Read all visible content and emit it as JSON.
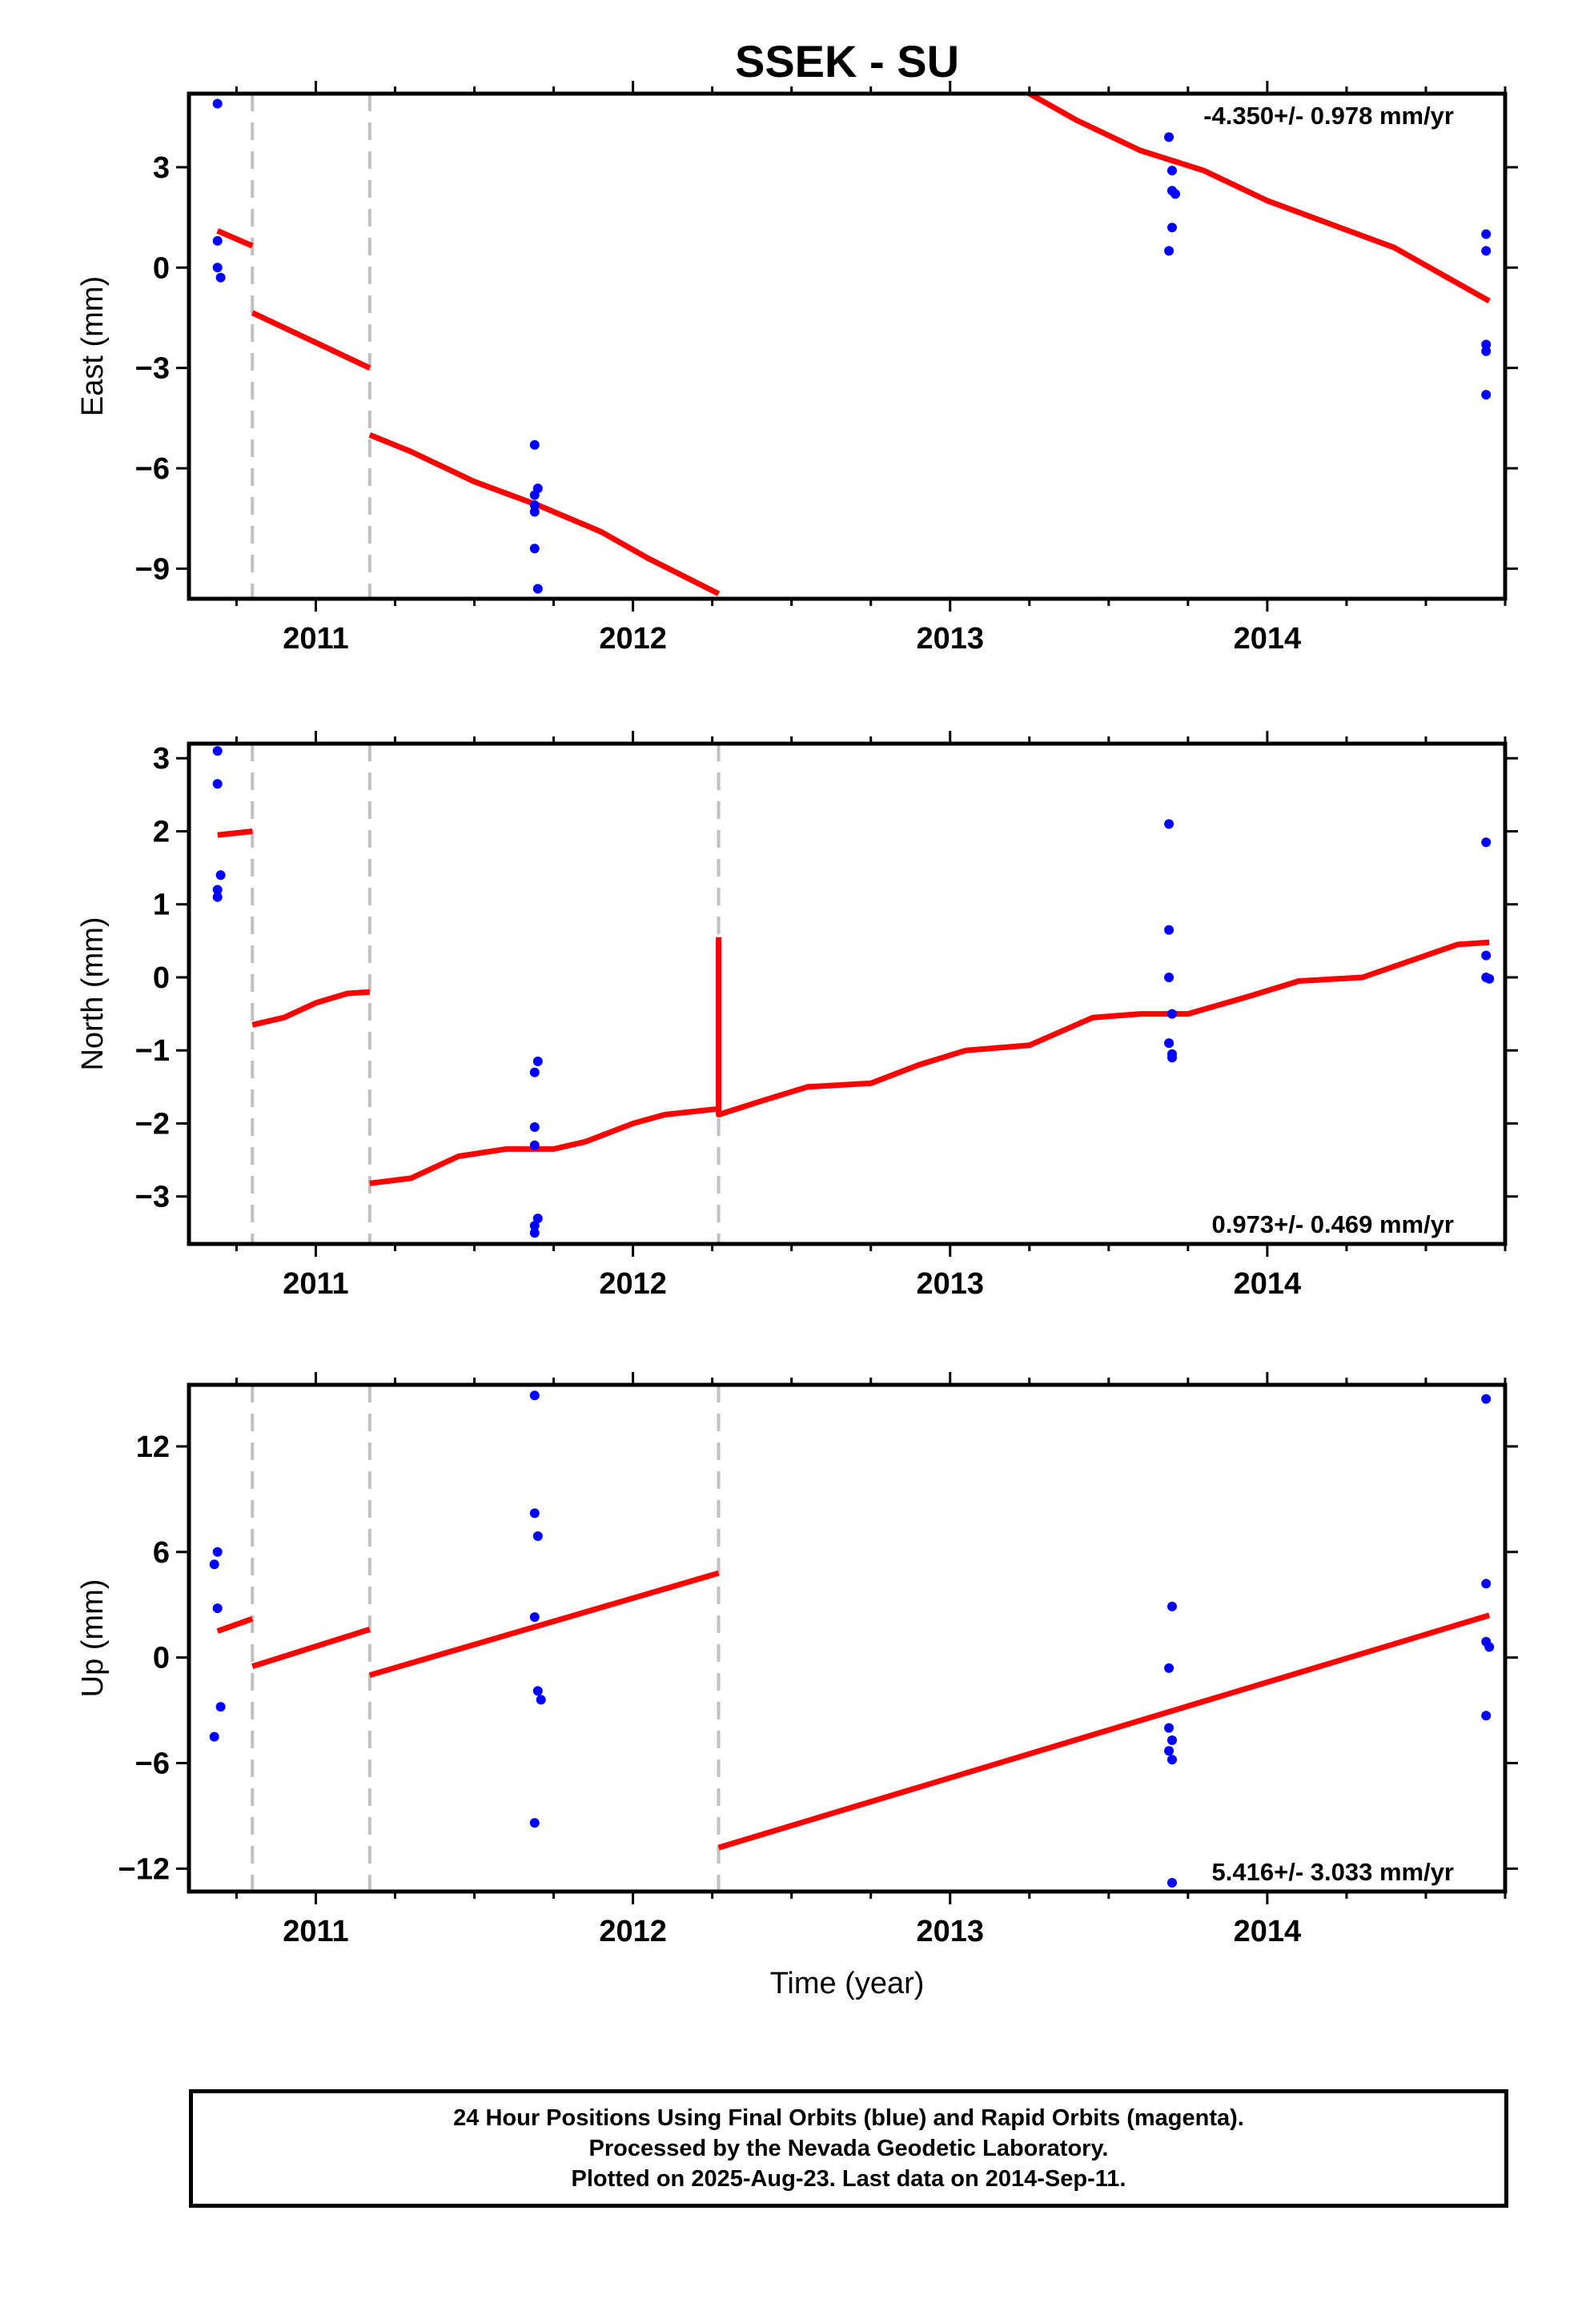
{
  "title": "SSEK - SU",
  "xlabel": "Time (year)",
  "x_ticks": [
    2011,
    2012,
    2013,
    2014
  ],
  "x_tick_labels": [
    "2011",
    "2012",
    "2013",
    "2014"
  ],
  "xlim": [
    2010.6,
    2014.75
  ],
  "event_lines": [
    2010.8,
    2011.17,
    2012.27
  ],
  "colors": {
    "model": "#ff0000",
    "data": "#0000ff",
    "event": "#c0c0c0",
    "axis": "#000000"
  },
  "footer": {
    "line1": "24 Hour Positions Using Final Orbits (blue) and Rapid Orbits (magenta).",
    "line2": "Processed by the Nevada Geodetic Laboratory.",
    "line3": "Plotted on 2025-Aug-23. Last data on 2014-Sep-11."
  },
  "chart_data": [
    {
      "type": "scatter",
      "ylabel": "East (mm)",
      "ylim": [
        -9.9,
        5.2
      ],
      "yticks": [
        -9,
        -6,
        -3,
        0,
        3
      ],
      "ytick_labels": [
        "−9",
        "−6",
        "−3",
        "0",
        "3"
      ],
      "rate_label": "-4.350+/- 0.978 mm/yr",
      "rate_position": "top-right",
      "event_lines": [
        2010.8,
        2011.17
      ],
      "points": [
        [
          2010.69,
          4.9
        ],
        [
          2010.69,
          0.8
        ],
        [
          2010.69,
          0.0
        ],
        [
          2010.7,
          -0.3
        ],
        [
          2011.69,
          -5.3
        ],
        [
          2011.7,
          -6.6
        ],
        [
          2011.69,
          -6.8
        ],
        [
          2011.69,
          -7.1
        ],
        [
          2011.69,
          -7.3
        ],
        [
          2011.69,
          -8.4
        ],
        [
          2011.7,
          -9.6
        ],
        [
          2013.69,
          3.9
        ],
        [
          2013.7,
          2.9
        ],
        [
          2013.7,
          2.3
        ],
        [
          2013.71,
          2.2
        ],
        [
          2013.7,
          1.2
        ],
        [
          2013.69,
          0.5
        ],
        [
          2014.69,
          1.0
        ],
        [
          2014.69,
          0.5
        ],
        [
          2014.69,
          -2.3
        ],
        [
          2014.69,
          -2.5
        ],
        [
          2014.69,
          -3.8
        ]
      ],
      "model_segments": [
        [
          [
            2010.69,
            1.1
          ],
          [
            2010.8,
            0.65
          ]
        ],
        [
          [
            2010.8,
            -1.35
          ],
          [
            2011.17,
            -3.0
          ]
        ],
        [
          [
            2011.17,
            -5.0
          ],
          [
            2011.3,
            -5.5
          ],
          [
            2011.5,
            -6.4
          ],
          [
            2011.7,
            -7.1
          ],
          [
            2011.9,
            -7.9
          ],
          [
            2012.05,
            -8.7
          ],
          [
            2012.27,
            -9.75
          ]
        ],
        [
          [
            2012.27,
            5.2
          ],
          [
            2012.27,
            20.0
          ],
          [
            2013.0,
            8.0
          ],
          [
            2013.25,
            5.2
          ],
          [
            2013.4,
            4.4
          ],
          [
            2013.6,
            3.5
          ],
          [
            2013.8,
            2.9
          ],
          [
            2014.0,
            2.0
          ],
          [
            2014.2,
            1.3
          ],
          [
            2014.4,
            0.6
          ],
          [
            2014.7,
            -1.0
          ]
        ]
      ]
    },
    {
      "type": "scatter",
      "ylabel": "North (mm)",
      "ylim": [
        -3.65,
        3.2
      ],
      "yticks": [
        -3,
        -2,
        -1,
        0,
        1,
        2,
        3
      ],
      "ytick_labels": [
        "−3",
        "−2",
        "−1",
        "0",
        "1",
        "2",
        "3"
      ],
      "rate_label": "0.973+/- 0.469 mm/yr",
      "rate_position": "bottom-right",
      "event_lines": [
        2010.8,
        2011.17,
        2012.27
      ],
      "points": [
        [
          2010.69,
          3.1
        ],
        [
          2010.69,
          2.65
        ],
        [
          2010.7,
          1.4
        ],
        [
          2010.69,
          1.2
        ],
        [
          2010.69,
          1.1
        ],
        [
          2011.7,
          -1.15
        ],
        [
          2011.69,
          -1.3
        ],
        [
          2011.69,
          -2.05
        ],
        [
          2011.69,
          -2.3
        ],
        [
          2011.7,
          -3.3
        ],
        [
          2011.69,
          -3.4
        ],
        [
          2011.69,
          -3.5
        ],
        [
          2013.69,
          2.1
        ],
        [
          2013.69,
          0.65
        ],
        [
          2013.69,
          0.0
        ],
        [
          2013.7,
          -0.5
        ],
        [
          2013.69,
          -0.9
        ],
        [
          2013.7,
          -1.05
        ],
        [
          2013.7,
          -1.1
        ],
        [
          2014.69,
          1.85
        ],
        [
          2014.69,
          0.3
        ],
        [
          2014.69,
          0.0
        ],
        [
          2014.7,
          -0.02
        ]
      ],
      "model_segments": [
        [
          [
            2010.69,
            1.95
          ],
          [
            2010.8,
            2.0
          ]
        ],
        [
          [
            2010.8,
            -0.65
          ],
          [
            2010.9,
            -0.55
          ],
          [
            2011.0,
            -0.35
          ],
          [
            2011.1,
            -0.22
          ],
          [
            2011.17,
            -0.2
          ]
        ],
        [
          [
            2011.17,
            -2.82
          ],
          [
            2011.3,
            -2.75
          ],
          [
            2011.45,
            -2.45
          ],
          [
            2011.6,
            -2.35
          ],
          [
            2011.75,
            -2.35
          ],
          [
            2011.85,
            -2.25
          ],
          [
            2012.0,
            -2.0
          ],
          [
            2012.1,
            -1.88
          ],
          [
            2012.27,
            -1.8
          ]
        ],
        [
          [
            2012.27,
            0.55
          ],
          [
            2012.27,
            -1.88
          ],
          [
            2012.4,
            -1.7
          ],
          [
            2012.55,
            -1.5
          ],
          [
            2012.75,
            -1.45
          ],
          [
            2012.9,
            -1.2
          ],
          [
            2013.05,
            -1.0
          ],
          [
            2013.25,
            -0.93
          ],
          [
            2013.45,
            -0.55
          ],
          [
            2013.6,
            -0.5
          ],
          [
            2013.75,
            -0.5
          ],
          [
            2013.95,
            -0.25
          ],
          [
            2014.1,
            -0.05
          ],
          [
            2014.3,
            0.0
          ],
          [
            2014.5,
            0.3
          ],
          [
            2014.6,
            0.45
          ],
          [
            2014.7,
            0.48
          ]
        ]
      ]
    },
    {
      "type": "scatter",
      "ylabel": "Up (mm)",
      "ylim": [
        -13.3,
        15.5
      ],
      "yticks": [
        -12,
        -6,
        0,
        6,
        12
      ],
      "ytick_labels": [
        "−12",
        "−6",
        "0",
        "6",
        "12"
      ],
      "rate_label": "5.416+/- 3.033 mm/yr",
      "rate_position": "bottom-right",
      "event_lines": [
        2010.8,
        2011.17,
        2012.27
      ],
      "points": [
        [
          2010.69,
          6.0
        ],
        [
          2010.68,
          5.3
        ],
        [
          2010.69,
          2.8
        ],
        [
          2010.7,
          -2.8
        ],
        [
          2010.68,
          -4.5
        ],
        [
          2011.69,
          14.9
        ],
        [
          2011.69,
          8.2
        ],
        [
          2011.7,
          6.9
        ],
        [
          2011.69,
          2.3
        ],
        [
          2011.7,
          -1.9
        ],
        [
          2011.71,
          -2.4
        ],
        [
          2011.69,
          -9.4
        ],
        [
          2013.7,
          2.9
        ],
        [
          2013.69,
          -0.6
        ],
        [
          2013.69,
          -4.0
        ],
        [
          2013.7,
          -4.7
        ],
        [
          2013.69,
          -5.3
        ],
        [
          2013.7,
          -5.8
        ],
        [
          2013.7,
          -12.8
        ],
        [
          2014.69,
          14.7
        ],
        [
          2014.69,
          4.2
        ],
        [
          2014.69,
          0.9
        ],
        [
          2014.7,
          0.6
        ],
        [
          2014.69,
          -3.3
        ]
      ],
      "model_segments": [
        [
          [
            2010.69,
            1.5
          ],
          [
            2010.8,
            2.2
          ]
        ],
        [
          [
            2010.8,
            -0.5
          ],
          [
            2011.17,
            1.6
          ]
        ],
        [
          [
            2011.17,
            -1.0
          ],
          [
            2012.27,
            4.8
          ]
        ],
        [
          [
            2012.27,
            -10.8
          ],
          [
            2014.7,
            2.4
          ]
        ]
      ]
    }
  ]
}
